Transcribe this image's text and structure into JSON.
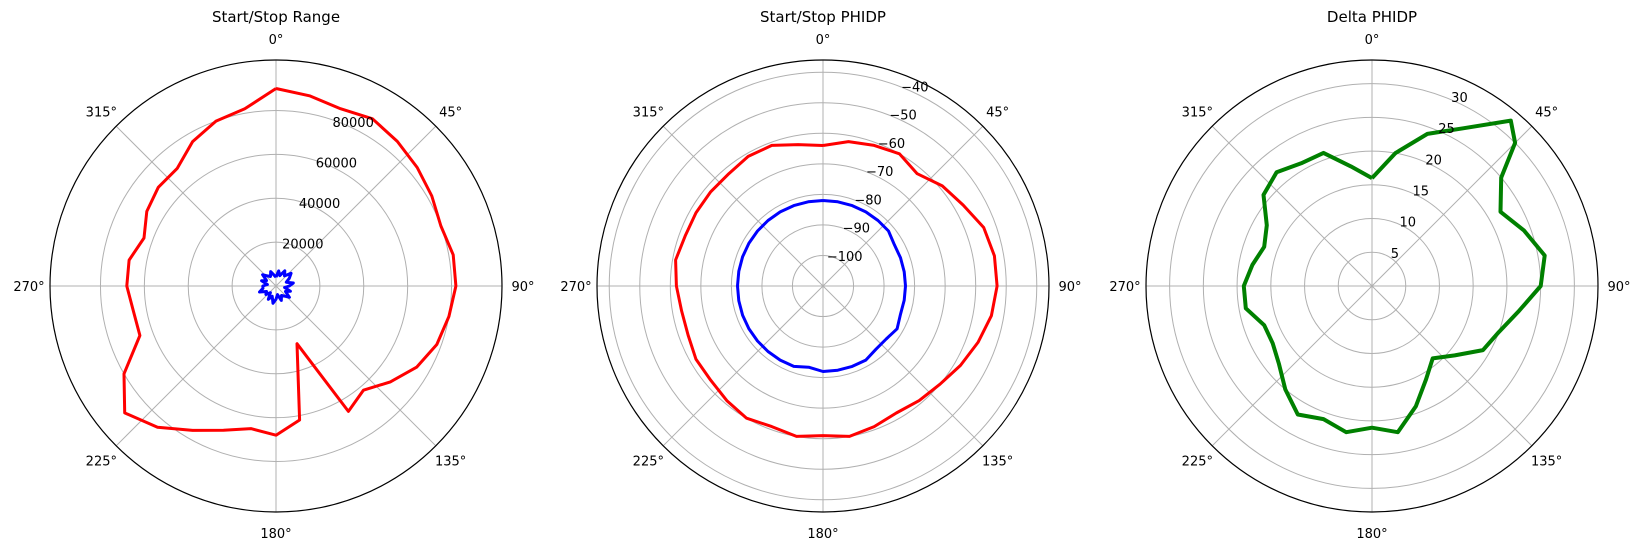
{
  "chart_data": [
    {
      "type": "polar-line",
      "title": "Start/Stop Range",
      "theta_direction": "clockwise",
      "theta_zero": "top",
      "angle_tick_labels": [
        "0°",
        "45°",
        "90°",
        "135°",
        "180°",
        "225°",
        "270°",
        "315°"
      ],
      "rlim": [
        0,
        103000
      ],
      "radial_ticks": [
        20000,
        40000,
        60000,
        80000
      ],
      "radial_tick_labels": [
        "20000",
        "40000",
        "60000",
        "80000"
      ],
      "grid": true,
      "series": [
        {
          "color": "#ff0000",
          "theta_deg": [
            0,
            10,
            20,
            30,
            40,
            50,
            60,
            70,
            80,
            90,
            100,
            110,
            120,
            130,
            140,
            150,
            160,
            170,
            180,
            190,
            200,
            210,
            220,
            230,
            240,
            250,
            260,
            270,
            280,
            290,
            300,
            310,
            320,
            330,
            340,
            350,
            360
          ],
          "r": [
            90000,
            88000,
            86000,
            88000,
            86000,
            84000,
            82000,
            80000,
            82000,
            82000,
            80000,
            78000,
            74000,
            68000,
            62000,
            66000,
            28000,
            62000,
            68000,
            66000,
            70000,
            76000,
            84000,
            90000,
            80000,
            66000,
            66000,
            68000,
            68000,
            64000,
            68000,
            70000,
            70000,
            76000,
            80000,
            82000,
            90000
          ]
        },
        {
          "color": "#0000ff",
          "theta_deg": [
            0,
            10,
            20,
            30,
            40,
            50,
            60,
            70,
            80,
            90,
            100,
            110,
            120,
            130,
            140,
            150,
            160,
            170,
            180,
            190,
            200,
            210,
            220,
            230,
            240,
            250,
            260,
            270,
            280,
            290,
            300,
            310,
            320,
            330,
            340,
            350,
            360
          ],
          "r": [
            4000,
            7000,
            5000,
            8000,
            6000,
            9000,
            7000,
            5000,
            8000,
            6000,
            4000,
            7000,
            5000,
            8000,
            6000,
            5000,
            7000,
            4000,
            6000,
            8000,
            5000,
            7000,
            4000,
            6000,
            5000,
            8000,
            6000,
            6000,
            4000,
            7000,
            5000,
            8000,
            6000,
            5000,
            7000,
            5000,
            4000
          ]
        }
      ]
    },
    {
      "type": "polar-line",
      "title": "Start/Stop PHIDP",
      "theta_direction": "clockwise",
      "theta_zero": "top",
      "angle_tick_labels": [
        "0°",
        "45°",
        "90°",
        "135°",
        "180°",
        "225°",
        "270°",
        "315°"
      ],
      "rlim": [
        -110,
        -36
      ],
      "radial_ticks": [
        -100,
        -90,
        -80,
        -70,
        -60,
        -50,
        -40
      ],
      "radial_tick_labels": [
        "−100",
        "−90",
        "−80",
        "−70",
        "−60",
        "−50",
        "−40"
      ],
      "grid": true,
      "series": [
        {
          "color": "#ff0000",
          "theta_deg": [
            0,
            10,
            20,
            30,
            40,
            50,
            60,
            70,
            80,
            90,
            100,
            110,
            120,
            130,
            140,
            150,
            160,
            170,
            180,
            190,
            200,
            210,
            220,
            230,
            240,
            250,
            260,
            270,
            280,
            290,
            300,
            310,
            320,
            330,
            340,
            350,
            360
          ],
          "r": [
            -64,
            -62,
            -61,
            -60,
            -62,
            -59,
            -57,
            -54,
            -53,
            -53,
            -54,
            -56,
            -58,
            -60,
            -61,
            -62,
            -61,
            -60,
            -61,
            -60,
            -61,
            -60,
            -61,
            -62,
            -62,
            -63,
            -63,
            -62,
            -61,
            -62,
            -62,
            -62,
            -62,
            -61,
            -61,
            -63,
            -64
          ]
        },
        {
          "color": "#0000ff",
          "theta_deg": [
            0,
            10,
            20,
            30,
            40,
            50,
            60,
            70,
            80,
            90,
            100,
            110,
            120,
            130,
            140,
            150,
            160,
            170,
            180,
            190,
            200,
            210,
            220,
            230,
            240,
            250,
            260,
            270,
            280,
            290,
            300,
            310,
            320,
            330,
            340,
            350,
            360
          ],
          "r": [
            -82,
            -82,
            -82,
            -82,
            -82,
            -82,
            -83,
            -83,
            -83,
            -83,
            -83,
            -83,
            -82,
            -83,
            -83,
            -82,
            -82,
            -82,
            -82,
            -83,
            -82,
            -82,
            -82,
            -82,
            -82,
            -82,
            -82,
            -82,
            -82,
            -82,
            -82,
            -82,
            -82,
            -82,
            -82,
            -82,
            -82
          ]
        }
      ]
    },
    {
      "type": "polar-line",
      "title": "Delta PHIDP",
      "theta_direction": "clockwise",
      "theta_zero": "top",
      "angle_tick_labels": [
        "0°",
        "45°",
        "90°",
        "135°",
        "180°",
        "225°",
        "270°",
        "315°"
      ],
      "rlim": [
        0,
        33.5
      ],
      "radial_ticks": [
        5,
        10,
        15,
        20,
        25,
        30
      ],
      "radial_tick_labels": [
        "5",
        "10",
        "15",
        "20",
        "25",
        "30"
      ],
      "grid": true,
      "series": [
        {
          "color": "#008000",
          "theta_deg": [
            0,
            10,
            20,
            30,
            40,
            45,
            50,
            60,
            70,
            80,
            90,
            100,
            110,
            120,
            130,
            140,
            150,
            160,
            170,
            180,
            190,
            200,
            210,
            220,
            230,
            240,
            250,
            260,
            270,
            280,
            290,
            300,
            310,
            320,
            330,
            340,
            350,
            360
          ],
          "r": [
            16,
            20,
            24,
            27,
            32,
            30,
            25,
            22,
            24,
            26,
            25,
            22,
            20,
            19,
            16,
            14,
            16,
            19,
            22,
            21,
            22,
            21,
            22,
            20,
            18,
            17,
            17,
            19,
            19,
            18,
            17,
            18,
            21,
            22,
            21,
            21,
            18,
            16
          ]
        }
      ]
    }
  ]
}
